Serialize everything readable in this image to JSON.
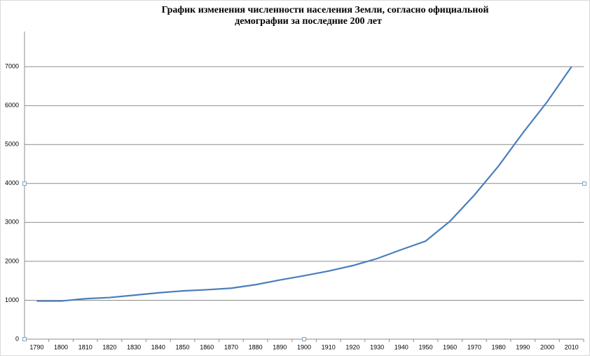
{
  "chart_data": {
    "type": "line",
    "title": [
      "График изменения численности населения Земли, согласно официальной",
      "демографии  за последние 200 лет"
    ],
    "categories": [
      "1790",
      "1800",
      "1810",
      "1820",
      "1830",
      "1840",
      "1850",
      "1860",
      "1870",
      "1880",
      "1890",
      "1900",
      "1910",
      "1920",
      "1930",
      "1940",
      "1950",
      "1960",
      "1970",
      "1980",
      "1990",
      "2000",
      "2010"
    ],
    "series": [
      {
        "color": "#4a7ebb",
        "values": [
          980,
          980,
          1040,
          1070,
          1130,
          1190,
          1240,
          1270,
          1310,
          1400,
          1520,
          1630,
          1750,
          1890,
          2070,
          2300,
          2520,
          3030,
          3700,
          4450,
          5300,
          6100,
          7000
        ]
      }
    ],
    "ylim": [
      0,
      8000
    ],
    "yticks": [
      0,
      1000,
      2000,
      3000,
      4000,
      5000,
      6000,
      7000
    ],
    "grid": true
  }
}
